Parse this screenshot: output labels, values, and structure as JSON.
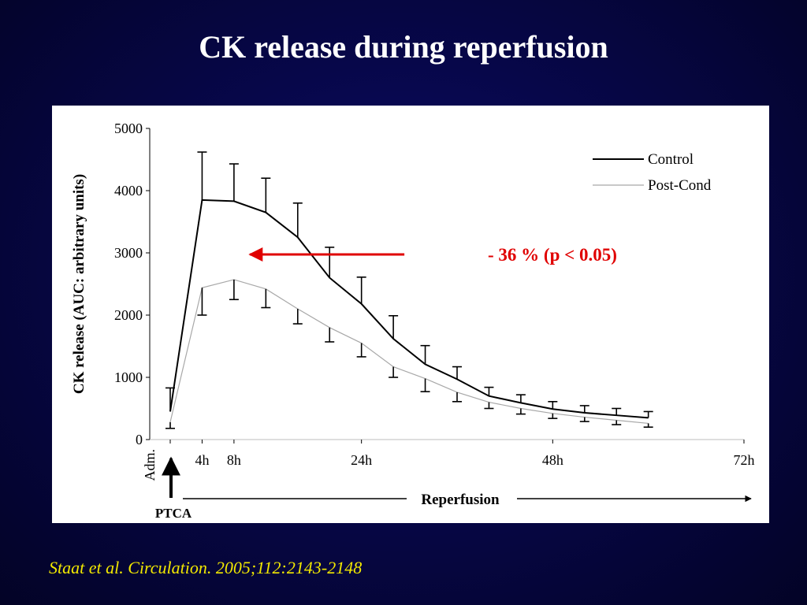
{
  "slide": {
    "title": "CK release during reperfusion",
    "citation": "Staat et al. Circulation. 2005;112:2143-2148"
  },
  "chart_data": {
    "type": "line",
    "ylabel": "CK release (AUC: arbitrary units)",
    "ylim": [
      0,
      5000
    ],
    "yticks": [
      0,
      1000,
      2000,
      3000,
      4000,
      5000
    ],
    "xlim": [
      -2,
      72
    ],
    "x_tick_labels": [
      {
        "x": 4,
        "label": "4h"
      },
      {
        "x": 8,
        "label": "8h"
      },
      {
        "x": 24,
        "label": "24h"
      },
      {
        "x": 48,
        "label": "48h"
      },
      {
        "x": 72,
        "label": "72h"
      }
    ],
    "x_start_label": "Adm.",
    "x": [
      0,
      4,
      8,
      12,
      16,
      20,
      24,
      28,
      32,
      36,
      40,
      44,
      48,
      52,
      56,
      60
    ],
    "series": [
      {
        "name": "Control",
        "color": "#000000",
        "values": [
          450,
          3850,
          3830,
          3650,
          3250,
          2600,
          2180,
          1620,
          1210,
          970,
          700,
          590,
          490,
          430,
          390,
          350
        ],
        "error": [
          380,
          770,
          600,
          550,
          550,
          490,
          430,
          370,
          300,
          200,
          140,
          130,
          120,
          115,
          110,
          100
        ]
      },
      {
        "name": "Post-Cond",
        "color": "#a8a8a8",
        "values": [
          280,
          2440,
          2570,
          2420,
          2100,
          1800,
          1550,
          1170,
          980,
          760,
          600,
          500,
          420,
          360,
          310,
          260
        ],
        "error": [
          100,
          440,
          320,
          300,
          240,
          230,
          220,
          170,
          210,
          150,
          100,
          90,
          80,
          70,
          70,
          60
        ]
      }
    ],
    "legend_position": "top-right",
    "grid": false,
    "annotation": {
      "text": "- 36 % (p < 0.05)",
      "color": "#e00000",
      "arrow_from_x": 28,
      "arrow_to_x": 10,
      "arrow_y": 3000
    },
    "ptca_label": "PTCA",
    "reperfusion_label": "Reperfusion"
  }
}
